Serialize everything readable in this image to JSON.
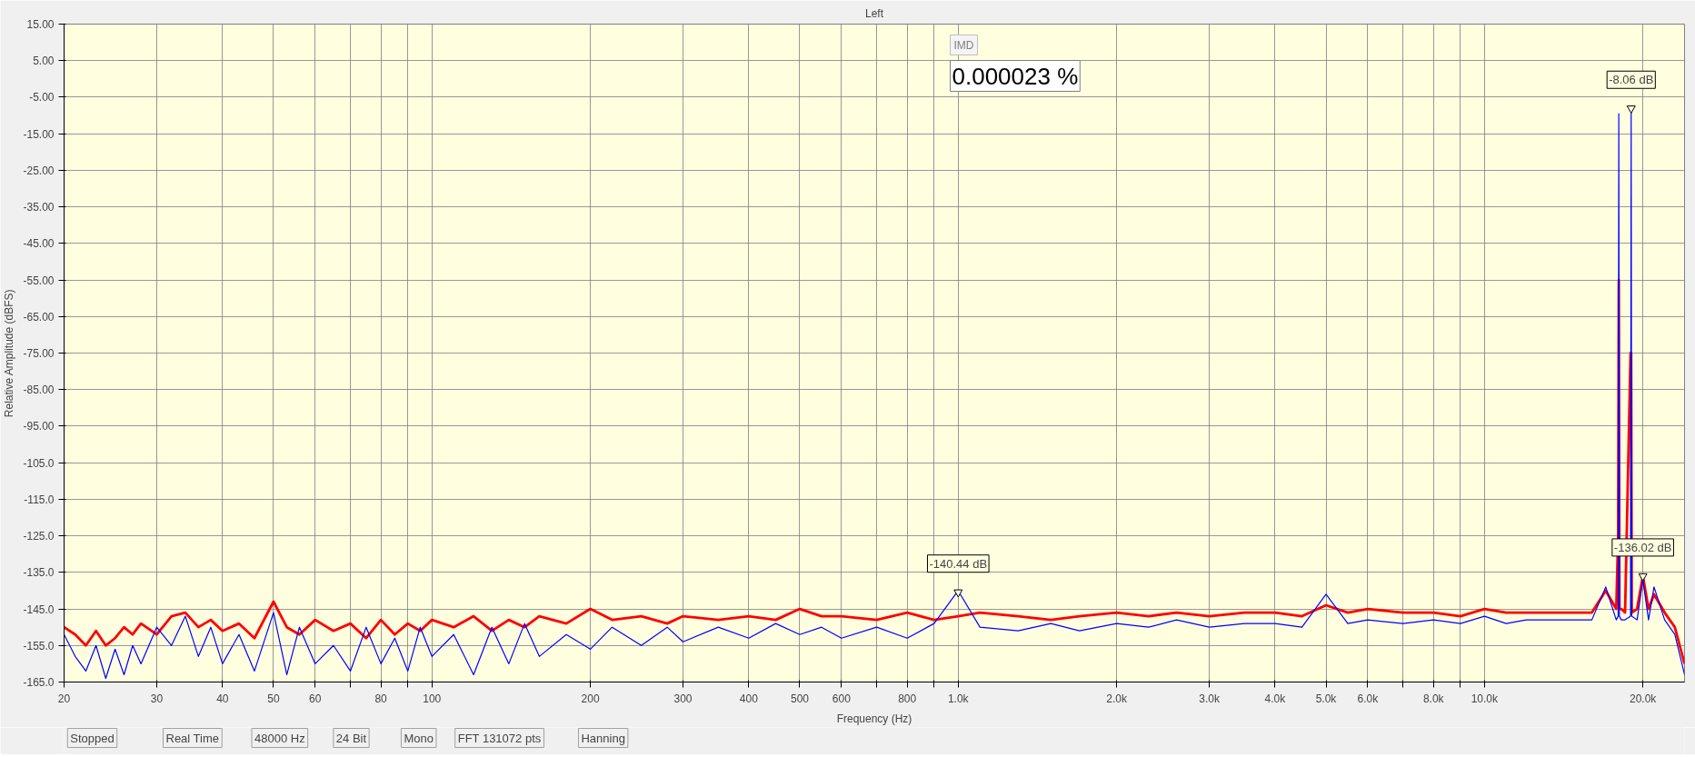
{
  "chart_data": {
    "type": "line",
    "title": "Left",
    "xlabel": "Frequency (Hz)",
    "ylabel": "Relative Amplitude (dBFS)",
    "log": "x",
    "grid": true,
    "marker": "none",
    "line_style": "solid",
    "xlim": [
      20,
      24000
    ],
    "xticks": [
      20,
      30,
      40,
      50,
      60,
      {
        "value": 70,
        "label": null
      },
      80,
      {
        "value": 90,
        "label": null
      },
      100,
      200,
      300,
      400,
      500,
      600,
      {
        "value": 700,
        "label": null
      },
      800,
      {
        "value": 900,
        "label": null
      },
      {
        "value": 1000,
        "label": "1.0k"
      },
      {
        "value": 2000,
        "label": "2.0k"
      },
      {
        "value": 3000,
        "label": "3.0k"
      },
      {
        "value": 4000,
        "label": "4.0k"
      },
      {
        "value": 5000,
        "label": "5.0k"
      },
      {
        "value": 6000,
        "label": "6.0k"
      },
      {
        "value": 7000,
        "label": null
      },
      {
        "value": 8000,
        "label": "8.0k"
      },
      {
        "value": 9000,
        "label": null
      },
      {
        "value": 10000,
        "label": "10.0k"
      },
      {
        "value": 20000,
        "label": "20.0k"
      }
    ],
    "ylim": [
      -165,
      15
    ],
    "yticks": [
      {
        "value": 15,
        "label": "15.00"
      },
      {
        "value": 5,
        "label": "5.00"
      },
      {
        "value": -5,
        "label": "-5.00"
      },
      {
        "value": -15,
        "label": "-15.00"
      },
      {
        "value": -25,
        "label": "-25.00"
      },
      {
        "value": -35,
        "label": "-35.00"
      },
      {
        "value": -45,
        "label": "-45.00"
      },
      {
        "value": -55,
        "label": "-55.00"
      },
      {
        "value": -65,
        "label": "-65.00"
      },
      {
        "value": -75,
        "label": "-75.00"
      },
      {
        "value": -85,
        "label": "-85.00"
      },
      {
        "value": -95,
        "label": "-95.00"
      },
      {
        "value": -105,
        "label": "-105.0"
      },
      {
        "value": -115,
        "label": "-115.0"
      },
      {
        "value": -125,
        "label": "-125.0"
      },
      {
        "value": -135,
        "label": "-135.0"
      },
      {
        "value": -145,
        "label": "-145.0"
      },
      {
        "value": -155,
        "label": "-155.0"
      },
      {
        "value": -165,
        "label": "-165.0"
      }
    ],
    "x": [
      20,
      21,
      22,
      23,
      24,
      25,
      26,
      27,
      28,
      30,
      32,
      34,
      36,
      38,
      40,
      43,
      46,
      50,
      53,
      56,
      60,
      65,
      70,
      75,
      80,
      85,
      90,
      95,
      100,
      110,
      120,
      130,
      140,
      150,
      160,
      180,
      200,
      220,
      250,
      280,
      300,
      350,
      400,
      450,
      500,
      550,
      600,
      700,
      800,
      900,
      1000,
      1100,
      1300,
      1500,
      1700,
      2000,
      2300,
      2600,
      3000,
      3500,
      4000,
      4500,
      5000,
      5500,
      6000,
      7000,
      8000,
      9000,
      10000,
      11000,
      12000,
      14000,
      16000,
      17000,
      17800,
      17950,
      18000,
      18050,
      18200,
      18500,
      18950,
      19000,
      19050,
      19500,
      20000,
      20500,
      21000,
      22000,
      23000,
      24000
    ],
    "series": [
      {
        "color": "#ff0000",
        "values": [
          -150,
          -152,
          -155,
          -151,
          -155,
          -153,
          -150,
          -152,
          -149,
          -152,
          -147,
          -146,
          -150,
          -148,
          -151,
          -149,
          -153,
          -143,
          -150,
          -152,
          -148,
          -151,
          -149,
          -153,
          -148,
          -152,
          -149,
          -151,
          -148,
          -150,
          -147,
          -151,
          -148,
          -150,
          -147,
          -149,
          -145,
          -148,
          -147,
          -149,
          -147,
          -148,
          -147,
          -148,
          -145,
          -147,
          -147,
          -148,
          -146,
          -148,
          -147,
          -146,
          -147,
          -148,
          -147,
          -146,
          -147,
          -146,
          -147,
          -146,
          -146,
          -147,
          -144,
          -146,
          -145,
          -146,
          -146,
          -147,
          -145,
          -146,
          -146,
          -146,
          -146,
          -140,
          -145,
          -125,
          -55,
          -145,
          -145,
          -146,
          -75,
          -75,
          -146,
          -145,
          -136,
          -145,
          -141,
          -146,
          -150,
          -160
        ]
      },
      {
        "color": "#0000ff",
        "values": [
          -152,
          -158,
          -162,
          -155,
          -164,
          -156,
          -163,
          -155,
          -160,
          -150,
          -155,
          -147,
          -158,
          -150,
          -160,
          -152,
          -162,
          -146,
          -163,
          -150,
          -160,
          -155,
          -162,
          -150,
          -160,
          -153,
          -162,
          -150,
          -158,
          -152,
          -163,
          -150,
          -160,
          -149,
          -158,
          -152,
          -156,
          -150,
          -155,
          -150,
          -154,
          -150,
          -153,
          -149,
          -152,
          -150,
          -153,
          -150,
          -153,
          -149,
          -140,
          -150,
          -151,
          -149,
          -151,
          -149,
          -150,
          -148,
          -150,
          -149,
          -149,
          -150,
          -141,
          -149,
          -148,
          -149,
          -148,
          -149,
          -147,
          -149,
          -148,
          -148,
          -148,
          -139,
          -148,
          -147,
          -9.5,
          -147,
          -148,
          -148,
          -147,
          -8,
          -147,
          -148,
          -137,
          -148,
          -139,
          -148,
          -152,
          -163
        ]
      }
    ],
    "annotations": [
      "IMD",
      "0.000023 %",
      {
        "text": "-140.44 dB",
        "x": 1000,
        "y": -140.44
      },
      {
        "text": "-8.06 dB",
        "x": 19000,
        "y": -8.06
      },
      {
        "text": "-136.02 dB",
        "x": 20000,
        "y": -136.02
      },
      "Stopped",
      "Real Time",
      "48000 Hz",
      "24 Bit",
      "Mono",
      "FFT 131072 pts",
      "Hanning"
    ]
  }
}
